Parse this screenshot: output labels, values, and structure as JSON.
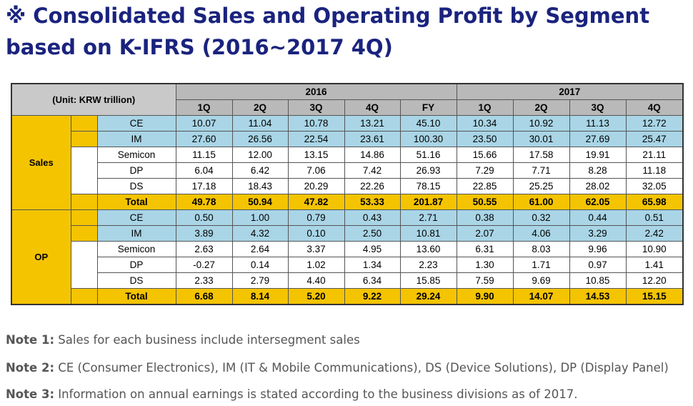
{
  "title": "※ Consolidated Sales and Operating Profit by Segment based on K-IFRS (2016~2017 4Q)",
  "table": {
    "unit": "(Unit: KRW trillion)",
    "years": [
      "2016",
      "2017"
    ],
    "periods_2016": [
      "1Q",
      "2Q",
      "3Q",
      "4Q",
      "FY"
    ],
    "periods_2017": [
      "1Q",
      "2Q",
      "3Q",
      "4Q"
    ],
    "groups": [
      {
        "name": "Sales",
        "rows": [
          {
            "label": "CE",
            "values": [
              "10.07",
              "11.04",
              "10.78",
              "13.21",
              "45.10",
              "10.34",
              "10.92",
              "11.13",
              "12.72"
            ]
          },
          {
            "label": "IM",
            "values": [
              "27.60",
              "26.56",
              "22.54",
              "23.61",
              "100.30",
              "23.50",
              "30.01",
              "27.69",
              "25.47"
            ]
          },
          {
            "label": "Semicon",
            "values": [
              "11.15",
              "12.00",
              "13.15",
              "14.86",
              "51.16",
              "15.66",
              "17.58",
              "19.91",
              "21.11"
            ]
          },
          {
            "label": "DP",
            "values": [
              "6.04",
              "6.42",
              "7.06",
              "7.42",
              "26.93",
              "7.29",
              "7.71",
              "8.28",
              "11.18"
            ]
          },
          {
            "label": "DS",
            "values": [
              "17.18",
              "18.43",
              "20.29",
              "22.26",
              "78.15",
              "22.85",
              "25.25",
              "28.02",
              "32.05"
            ]
          },
          {
            "label": "Total",
            "values": [
              "49.78",
              "50.94",
              "47.82",
              "53.33",
              "201.87",
              "50.55",
              "61.00",
              "62.05",
              "65.98"
            ]
          }
        ]
      },
      {
        "name": "OP",
        "rows": [
          {
            "label": "CE",
            "values": [
              "0.50",
              "1.00",
              "0.79",
              "0.43",
              "2.71",
              "0.38",
              "0.32",
              "0.44",
              "0.51"
            ]
          },
          {
            "label": "IM",
            "values": [
              "3.89",
              "4.32",
              "0.10",
              "2.50",
              "10.81",
              "2.07",
              "4.06",
              "3.29",
              "2.42"
            ]
          },
          {
            "label": "Semicon",
            "values": [
              "2.63",
              "2.64",
              "3.37",
              "4.95",
              "13.60",
              "6.31",
              "8.03",
              "9.96",
              "10.90"
            ]
          },
          {
            "label": "DP",
            "values": [
              "-0.27",
              "0.14",
              "1.02",
              "1.34",
              "2.23",
              "1.30",
              "1.71",
              "0.97",
              "1.41"
            ]
          },
          {
            "label": "DS",
            "values": [
              "2.33",
              "2.79",
              "4.40",
              "6.34",
              "15.85",
              "7.59",
              "9.69",
              "10.85",
              "12.20"
            ]
          },
          {
            "label": "Total",
            "values": [
              "6.68",
              "8.14",
              "5.20",
              "9.22",
              "29.24",
              "9.90",
              "14.07",
              "14.53",
              "15.15"
            ]
          }
        ]
      }
    ]
  },
  "notes": [
    {
      "label": "Note 1:",
      "text": " Sales for each business include intersegment sales"
    },
    {
      "label": "Note 2:",
      "text": " CE (Consumer Electronics), IM (IT & Mobile Communications), DS (Device Solutions), DP (Display Panel)"
    },
    {
      "label": "Note 3:",
      "text": " Information on annual earnings is stated according to the business divisions as of 2017."
    }
  ]
}
